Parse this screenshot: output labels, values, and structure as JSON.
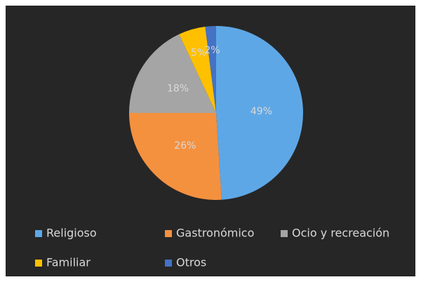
{
  "chart_data": {
    "type": "pie",
    "categories": [
      "Religioso",
      "Gastronómico",
      "Ocio y recreación",
      "Familiar",
      "Otros"
    ],
    "values": [
      49,
      26,
      18,
      5,
      2
    ],
    "value_labels": [
      "49%",
      "26%",
      "18%",
      "5%",
      "2%"
    ],
    "colors": [
      "#5ea7e6",
      "#f4913f",
      "#a5a5a5",
      "#ffc000",
      "#4472c4"
    ],
    "legend": "bottom"
  }
}
